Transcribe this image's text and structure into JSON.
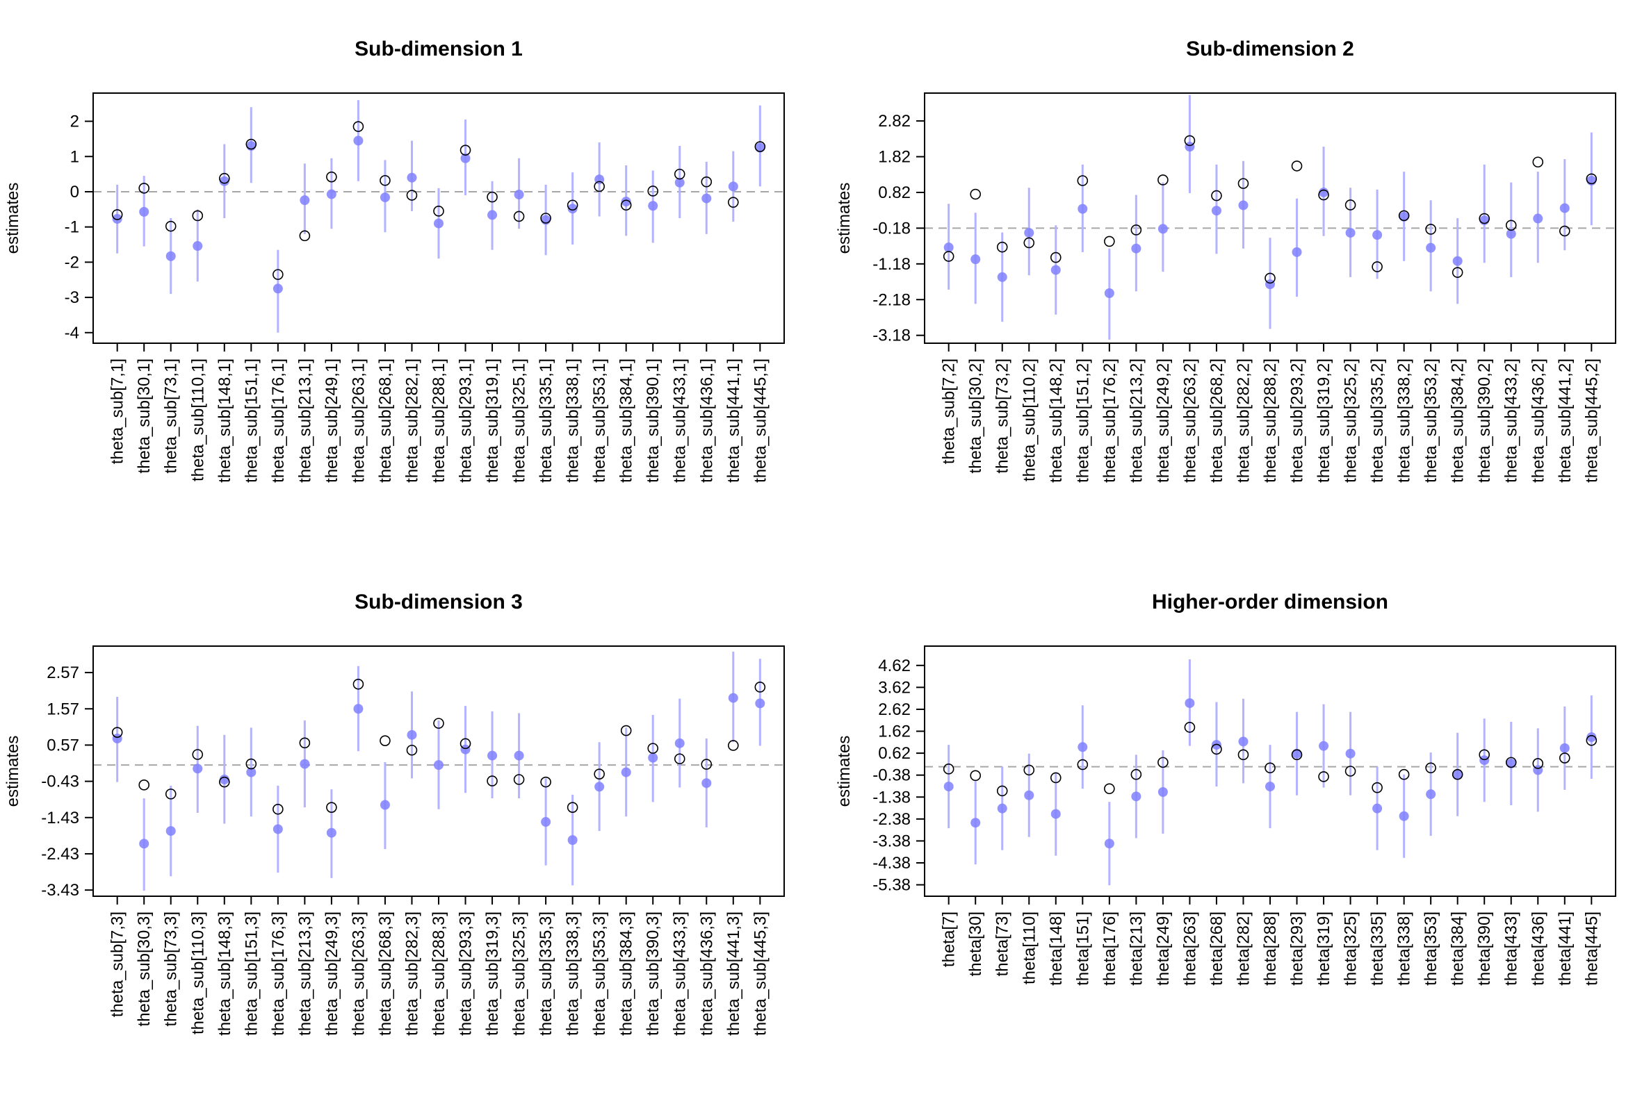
{
  "colors": {
    "estimate": "#8080ff",
    "interval": "#b3b3ff",
    "truth": "#000000",
    "reference_line": "#a6a6a6"
  },
  "chart_data": [
    {
      "type": "scatter",
      "title": "Sub-dimension 1",
      "ylabel": "estimates",
      "ylim": [
        -4.3,
        2.8
      ],
      "yticks": [
        2,
        1,
        0,
        -1,
        -2,
        -3,
        -4
      ],
      "reference_line": 0,
      "categories": [
        "theta_sub[7,1]",
        "theta_sub[30,1]",
        "theta_sub[73,1]",
        "theta_sub[110,1]",
        "theta_sub[148,1]",
        "theta_sub[151,1]",
        "theta_sub[176,1]",
        "theta_sub[213,1]",
        "theta_sub[249,1]",
        "theta_sub[263,1]",
        "theta_sub[268,1]",
        "theta_sub[282,1]",
        "theta_sub[288,1]",
        "theta_sub[293,1]",
        "theta_sub[319,1]",
        "theta_sub[325,1]",
        "theta_sub[335,1]",
        "theta_sub[338,1]",
        "theta_sub[353,1]",
        "theta_sub[384,1]",
        "theta_sub[390,1]",
        "theta_sub[433,1]",
        "theta_sub[436,1]",
        "theta_sub[441,1]",
        "theta_sub[445,1]"
      ],
      "estimate": [
        -0.77,
        -0.57,
        -1.83,
        -1.54,
        0.3,
        1.3,
        -2.75,
        -0.24,
        -0.07,
        1.45,
        -0.16,
        0.4,
        -0.9,
        0.95,
        -0.66,
        -0.08,
        -0.8,
        -0.48,
        0.35,
        -0.28,
        -0.4,
        0.26,
        -0.19,
        0.15,
        1.25
      ],
      "lower": [
        -1.75,
        -1.55,
        -2.9,
        -2.55,
        -0.75,
        0.25,
        -4.0,
        -1.2,
        -1.05,
        0.3,
        -1.15,
        -0.55,
        -1.9,
        -0.1,
        -1.65,
        -1.05,
        -1.8,
        -1.5,
        -0.7,
        -1.25,
        -1.45,
        -0.75,
        -1.2,
        -0.85,
        0.15
      ],
      "upper": [
        0.2,
        0.45,
        -0.75,
        -0.5,
        1.35,
        2.4,
        -1.65,
        0.8,
        0.95,
        2.6,
        0.9,
        1.45,
        0.1,
        2.05,
        0.3,
        0.95,
        0.2,
        0.55,
        1.4,
        0.75,
        0.6,
        1.3,
        0.85,
        1.15,
        2.45
      ],
      "truth": [
        -0.65,
        0.1,
        -0.98,
        -0.68,
        0.38,
        1.35,
        -2.35,
        -1.25,
        0.42,
        1.85,
        0.32,
        -0.1,
        -0.55,
        1.18,
        -0.15,
        -0.7,
        -0.75,
        -0.38,
        0.15,
        -0.38,
        0.02,
        0.5,
        0.28,
        -0.3,
        1.28
      ]
    },
    {
      "type": "scatter",
      "title": "Sub-dimension 2",
      "ylabel": "estimates",
      "ylim": [
        -3.4,
        3.6
      ],
      "yticks": [
        2.82,
        1.82,
        0.82,
        -0.18,
        -1.18,
        -2.18,
        -3.18
      ],
      "reference_line": -0.18,
      "categories": [
        "theta_sub[7,2]",
        "theta_sub[30,2]",
        "theta_sub[73,2]",
        "theta_sub[110,2]",
        "theta_sub[148,2]",
        "theta_sub[151,2]",
        "theta_sub[176,2]",
        "theta_sub[213,2]",
        "theta_sub[249,2]",
        "theta_sub[263,2]",
        "theta_sub[268,2]",
        "theta_sub[282,2]",
        "theta_sub[288,2]",
        "theta_sub[293,2]",
        "theta_sub[319,2]",
        "theta_sub[325,2]",
        "theta_sub[335,2]",
        "theta_sub[338,2]",
        "theta_sub[353,2]",
        "theta_sub[384,2]",
        "theta_sub[390,2]",
        "theta_sub[433,2]",
        "theta_sub[436,2]",
        "theta_sub[441,2]",
        "theta_sub[445,2]"
      ],
      "estimate": [
        -0.72,
        -1.05,
        -1.55,
        -0.31,
        -1.35,
        0.36,
        -2.0,
        -0.75,
        -0.2,
        2.1,
        0.31,
        0.46,
        -1.75,
        -0.85,
        0.82,
        -0.31,
        -0.37,
        0.14,
        -0.73,
        -1.1,
        0.04,
        -0.34,
        0.09,
        0.38,
        1.15
      ],
      "lower": [
        -1.9,
        -2.3,
        -2.8,
        -1.5,
        -2.6,
        -0.85,
        -3.3,
        -1.95,
        -1.4,
        0.8,
        -0.9,
        -0.75,
        -3.0,
        -2.1,
        -0.4,
        -1.55,
        -1.6,
        -1.1,
        -1.95,
        -2.3,
        -1.15,
        -1.55,
        -1.15,
        -0.8,
        -0.1
      ],
      "upper": [
        0.5,
        0.25,
        -0.3,
        0.95,
        -0.1,
        1.6,
        -0.75,
        0.75,
        1.1,
        3.55,
        1.6,
        1.7,
        -0.45,
        0.65,
        2.1,
        0.95,
        0.9,
        1.4,
        0.6,
        0.1,
        1.6,
        1.1,
        1.4,
        1.75,
        2.5
      ],
      "truth": [
        -0.97,
        0.77,
        -0.71,
        -0.59,
        -1.0,
        1.15,
        -0.55,
        -0.23,
        1.17,
        2.27,
        0.73,
        1.07,
        -1.58,
        1.56,
        0.75,
        0.47,
        -1.26,
        0.17,
        -0.21,
        -1.42,
        0.09,
        -0.1,
        1.67,
        -0.26,
        1.2
      ]
    },
    {
      "type": "scatter",
      "title": "Sub-dimension 3",
      "ylabel": "estimates",
      "ylim": [
        -3.6,
        3.3
      ],
      "yticks": [
        2.57,
        1.57,
        0.57,
        -0.43,
        -1.43,
        -2.43,
        -3.43
      ],
      "reference_line": 0.02,
      "categories": [
        "theta_sub[7,3]",
        "theta_sub[30,3]",
        "theta_sub[73,3]",
        "theta_sub[110,3]",
        "theta_sub[148,3]",
        "theta_sub[151,3]",
        "theta_sub[176,3]",
        "theta_sub[213,3]",
        "theta_sub[249,3]",
        "theta_sub[263,3]",
        "theta_sub[268,3]",
        "theta_sub[282,3]",
        "theta_sub[288,3]",
        "theta_sub[293,3]",
        "theta_sub[319,3]",
        "theta_sub[325,3]",
        "theta_sub[335,3]",
        "theta_sub[338,3]",
        "theta_sub[353,3]",
        "theta_sub[384,3]",
        "theta_sub[390,3]",
        "theta_sub[433,3]",
        "theta_sub[436,3]",
        "theta_sub[441,3]",
        "theta_sub[445,3]"
      ],
      "estimate": [
        0.75,
        -2.15,
        -1.8,
        -0.08,
        -0.38,
        -0.18,
        -1.75,
        0.05,
        -1.85,
        1.57,
        -1.08,
        0.85,
        0.02,
        0.45,
        0.28,
        0.28,
        -1.55,
        -2.05,
        -0.58,
        -0.18,
        0.22,
        0.62,
        -0.48,
        1.87,
        1.72
      ],
      "lower": [
        -0.45,
        -3.45,
        -3.05,
        -1.3,
        -1.6,
        -1.4,
        -2.95,
        -1.15,
        -3.1,
        0.4,
        -2.3,
        -0.35,
        -1.2,
        -0.75,
        -0.9,
        -0.9,
        -2.75,
        -3.3,
        -1.8,
        -1.4,
        -1.0,
        -0.6,
        -1.7,
        0.65,
        0.55
      ],
      "upper": [
        1.9,
        -0.9,
        -0.55,
        1.1,
        0.85,
        1.05,
        -0.55,
        1.25,
        -0.65,
        2.75,
        0.1,
        2.05,
        1.25,
        1.65,
        1.5,
        1.45,
        -0.35,
        -0.8,
        0.65,
        1.05,
        1.4,
        1.85,
        0.75,
        3.15,
        2.95
      ],
      "truth": [
        0.92,
        -0.53,
        -0.78,
        0.31,
        -0.45,
        0.05,
        -1.2,
        0.63,
        -1.15,
        2.25,
        0.69,
        0.43,
        1.17,
        0.61,
        -0.42,
        -0.38,
        -0.45,
        -1.15,
        -0.23,
        0.97,
        0.48,
        0.19,
        0.04,
        0.56,
        2.17
      ]
    },
    {
      "type": "scatter",
      "title": "Higher-order dimension",
      "ylabel": "estimates",
      "ylim": [
        -5.9,
        5.5
      ],
      "yticks": [
        4.62,
        3.62,
        2.62,
        1.62,
        0.62,
        -0.38,
        -1.38,
        -2.38,
        -3.38,
        -4.38,
        -5.38
      ],
      "reference_line": 0.0,
      "categories": [
        "theta[7]",
        "theta[30]",
        "theta[73]",
        "theta[110]",
        "theta[148]",
        "theta[151]",
        "theta[176]",
        "theta[213]",
        "theta[249]",
        "theta[263]",
        "theta[268]",
        "theta[282]",
        "theta[288]",
        "theta[293]",
        "theta[319]",
        "theta[325]",
        "theta[335]",
        "theta[338]",
        "theta[353]",
        "theta[384]",
        "theta[390]",
        "theta[433]",
        "theta[436]",
        "theta[441]",
        "theta[445]"
      ],
      "estimate": [
        -0.9,
        -2.55,
        -1.9,
        -1.3,
        -2.15,
        0.9,
        -3.5,
        -1.35,
        -1.15,
        2.9,
        1.0,
        1.15,
        -0.9,
        0.6,
        0.95,
        0.6,
        -1.9,
        -2.25,
        -1.25,
        -0.35,
        0.3,
        0.15,
        -0.15,
        0.85,
        1.35
      ],
      "lower": [
        -2.8,
        -4.45,
        -3.8,
        -3.2,
        -4.05,
        -1.0,
        -5.4,
        -3.25,
        -3.05,
        0.95,
        -0.9,
        -0.75,
        -2.8,
        -1.3,
        -0.95,
        -1.3,
        -3.8,
        -4.15,
        -3.15,
        -2.25,
        -1.6,
        -1.75,
        -2.05,
        -1.05,
        -0.55
      ],
      "upper": [
        1.0,
        -0.65,
        0.0,
        0.6,
        -0.25,
        2.8,
        -1.6,
        0.55,
        0.75,
        4.9,
        2.95,
        3.1,
        1.0,
        2.5,
        2.85,
        2.5,
        0.0,
        -0.35,
        0.65,
        1.55,
        2.2,
        2.05,
        1.75,
        2.75,
        3.25
      ],
      "truth": [
        -0.1,
        -0.4,
        -1.1,
        -0.15,
        -0.5,
        0.1,
        -1.0,
        -0.35,
        0.2,
        1.8,
        0.8,
        0.55,
        -0.05,
        0.55,
        -0.45,
        -0.2,
        -0.95,
        -0.35,
        -0.05,
        -0.35,
        0.55,
        0.2,
        0.15,
        0.4,
        1.2
      ]
    }
  ]
}
